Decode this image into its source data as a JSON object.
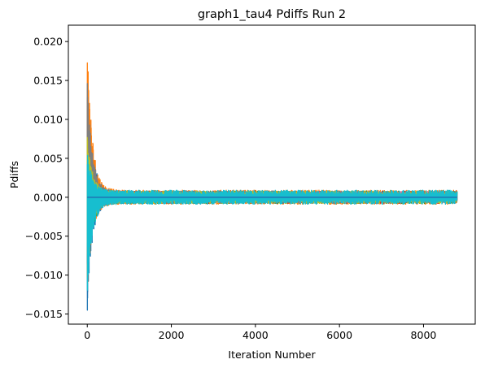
{
  "chart_data": {
    "type": "line",
    "title": "graph1_tau4 Pdiffs Run 2",
    "xlabel": "Iteration Number",
    "ylabel": "Pdiffs",
    "xlim": [
      -450,
      9230
    ],
    "ylim": [
      -0.0163,
      0.0221
    ],
    "xticks": [
      0,
      2000,
      4000,
      6000,
      8000
    ],
    "xtick_labels": [
      "0",
      "2000",
      "4000",
      "6000",
      "8000"
    ],
    "yticks": [
      -0.015,
      -0.01,
      -0.005,
      0.0,
      0.005,
      0.01,
      0.015,
      0.02
    ],
    "ytick_labels": [
      "−0.015",
      "−0.010",
      "−0.005",
      "0.000",
      "0.005",
      "0.010",
      "0.015",
      "0.020"
    ],
    "grid": false,
    "legend": "none",
    "x_range": [
      0,
      8800
    ],
    "series": [
      {
        "color": "#1f77b4",
        "peak": 0.0165,
        "trough": -0.0148,
        "tail": 0.0007
      },
      {
        "color": "#ff7f0e",
        "peak": 0.0209,
        "trough": -0.0118,
        "tail": 0.0009
      },
      {
        "color": "#2ca02c",
        "peak": 0.0086,
        "trough": -0.0105,
        "tail": 0.0008
      },
      {
        "color": "#d62728",
        "peak": 0.0112,
        "trough": -0.0092,
        "tail": 0.0008
      },
      {
        "color": "#9467bd",
        "peak": 0.0075,
        "trough": -0.008,
        "tail": 0.0007
      },
      {
        "color": "#8c564b",
        "peak": 0.0068,
        "trough": -0.0072,
        "tail": 0.0007
      },
      {
        "color": "#e377c2",
        "peak": 0.007,
        "trough": -0.007,
        "tail": 0.0007
      },
      {
        "color": "#7f7f7f",
        "peak": 0.015,
        "trough": -0.0105,
        "tail": 0.0008
      },
      {
        "color": "#bcbd22",
        "peak": 0.008,
        "trough": -0.0095,
        "tail": 0.0008
      },
      {
        "color": "#17becf",
        "peak": 0.006,
        "trough": -0.0128,
        "tail": 0.0009
      }
    ],
    "baseline": {
      "color": "#1f77b4",
      "value": 0.0
    }
  }
}
